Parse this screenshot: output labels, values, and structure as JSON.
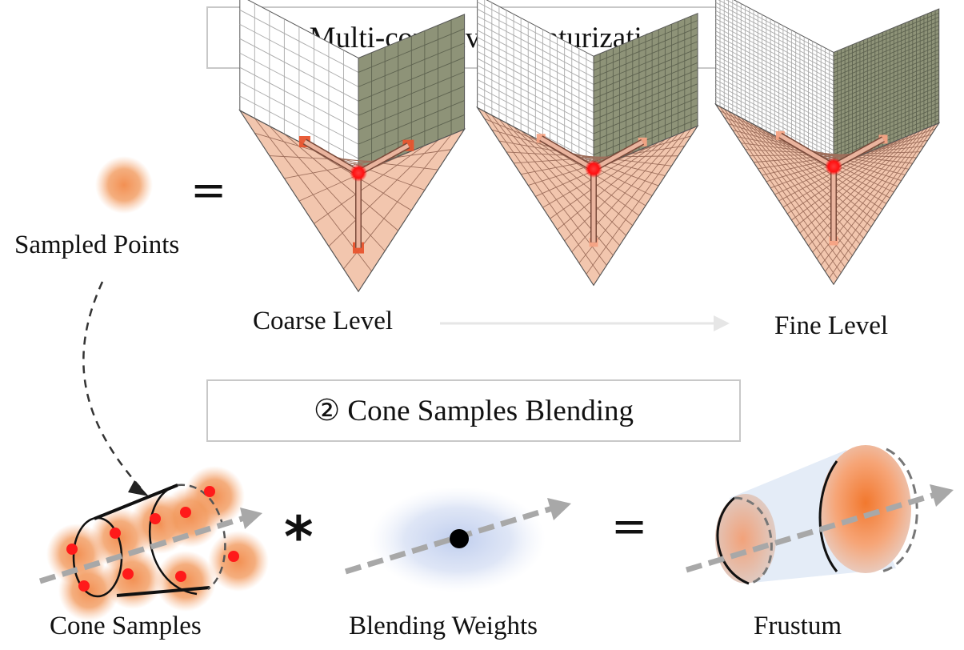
{
  "sections": {
    "featurization_title": "① Multi-convolved Featurization",
    "blending_title": "② Cone Samples Blending"
  },
  "labels": {
    "sampled_points": "Sampled Points",
    "coarse_level": "Coarse Level",
    "fine_level": "Fine Level",
    "cone_samples": "Cone Samples",
    "blending_weights": "Blending Weights",
    "frustum": "Frustum"
  },
  "symbols": {
    "equals_top": "=",
    "convolve": "*",
    "equals_bottom": "="
  },
  "grids": [
    {
      "name": "coarse",
      "divisions": 8
    },
    {
      "name": "medium",
      "divisions": 16
    },
    {
      "name": "fine",
      "divisions": 28
    }
  ],
  "cone_sample_points": 9,
  "colors": {
    "accent_red": "#ff1a1a",
    "floor": "#f2c6ae",
    "right_wall": "#8e9378",
    "left_wall": "#ffffff",
    "sample_orange": "#f29a5e",
    "blend_blue": "#b8c8ec",
    "axis_gray": "#a8a8a8"
  }
}
